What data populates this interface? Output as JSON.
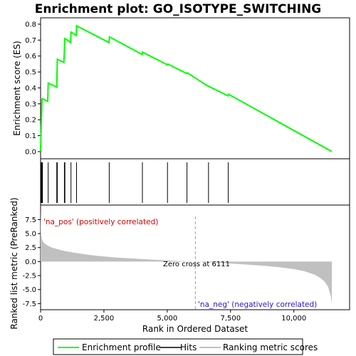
{
  "chart_data": {
    "type": "line",
    "title": "Enrichment plot: GO_ISOTYPE_SWITCHING",
    "x_axis": {
      "label": "Rank in Ordered Dataset",
      "range": [
        0,
        12200
      ],
      "ticks": [
        0,
        2500,
        5000,
        7500,
        10000
      ],
      "tick_labels": [
        "0",
        "2,500",
        "5,000",
        "7,500",
        "10,000"
      ]
    },
    "es_panel": {
      "ylabel": "Enrichment score (ES)",
      "ylim": [
        -0.045,
        0.84
      ],
      "ticks": [
        0.0,
        0.1,
        0.2,
        0.3,
        0.4,
        0.5,
        0.6,
        0.7,
        0.8
      ],
      "tick_labels": [
        "0.0",
        "0.1",
        "0.2",
        "0.3",
        "0.4",
        "0.5",
        "0.6",
        "0.7",
        "0.8"
      ],
      "grid": false
    },
    "metric_panel": {
      "ylabel": "Ranked list metric (PreRanked)",
      "ylim": [
        -8.6,
        10.1
      ],
      "ticks": [
        -7.5,
        -5.0,
        -2.5,
        0.0,
        2.5,
        5.0,
        7.5
      ],
      "tick_labels": [
        "-7.5",
        "-5.0",
        "-2.5",
        "0.0",
        "2.5",
        "5.0",
        "7.5"
      ]
    },
    "series": [
      {
        "name": "Enrichment profile",
        "color": "#00ff00",
        "x": [
          0,
          25,
          30,
          50,
          55,
          100,
          110,
          280,
          300,
          640,
          650,
          660,
          670,
          920,
          940,
          950,
          960,
          1190,
          1200,
          1410,
          1420,
          2700,
          2720,
          4010,
          4020,
          5000,
          5020,
          5770,
          5790,
          6620,
          6640,
          7400,
          7420,
          11500
        ],
        "y": [
          0.0,
          0.17,
          0.18,
          0.3,
          0.33,
          0.33,
          0.33,
          0.315,
          0.43,
          0.405,
          0.49,
          0.58,
          0.58,
          0.56,
          0.63,
          0.71,
          0.71,
          0.685,
          0.75,
          0.73,
          0.79,
          0.685,
          0.72,
          0.61,
          0.625,
          0.545,
          0.55,
          0.49,
          0.495,
          0.41,
          0.41,
          0.35,
          0.36,
          0.0
        ]
      }
    ],
    "hits": [
      15,
      30,
      50,
      60,
      75,
      300,
      640,
      660,
      940,
      960,
      1200,
      1420,
      2710,
      4020,
      5010,
      5780,
      6630,
      7410
    ],
    "ranking_metric": {
      "name": "Ranking metric scores",
      "color": "#c0c0c0",
      "x": [
        0,
        20,
        60,
        120,
        200,
        300,
        450,
        600,
        800,
        1000,
        1300,
        1600,
        2000,
        2500,
        3000,
        3500,
        4000,
        4500,
        5000,
        5500,
        6111,
        6600,
        7000,
        7500,
        8000,
        8500,
        9000,
        9500,
        10000,
        10400,
        10800,
        11000,
        11200,
        11350,
        11450,
        11500
      ],
      "y": [
        9.5,
        4.9,
        3.9,
        3.4,
        3.1,
        2.8,
        2.5,
        2.3,
        2.05,
        1.85,
        1.6,
        1.4,
        1.15,
        0.9,
        0.72,
        0.58,
        0.45,
        0.32,
        0.2,
        0.1,
        0.0,
        -0.12,
        -0.22,
        -0.35,
        -0.5,
        -0.65,
        -0.82,
        -1.05,
        -1.35,
        -1.7,
        -2.3,
        -2.8,
        -3.5,
        -4.5,
        -6.0,
        -7.6
      ]
    },
    "heatmap_bands": [
      {
        "start": 0,
        "end": 560,
        "color": "#e8000e"
      },
      {
        "start": 560,
        "end": 1200,
        "color": "#f21f2a"
      },
      {
        "start": 1200,
        "end": 2250,
        "color": "#f8434d"
      },
      {
        "start": 2250,
        "end": 3150,
        "color": "#fb6b73"
      },
      {
        "start": 3150,
        "end": 4400,
        "color": "#fd959a"
      },
      {
        "start": 4400,
        "end": 5000,
        "color": "#fdbcd8"
      },
      {
        "start": 5000,
        "end": 6111,
        "color": "#fdc8e8"
      },
      {
        "start": 6111,
        "end": 7800,
        "color": "#dcd8f8"
      },
      {
        "start": 7800,
        "end": 9000,
        "color": "#c4c0f8"
      },
      {
        "start": 9000,
        "end": 9700,
        "color": "#9f9bf0"
      },
      {
        "start": 9700,
        "end": 11000,
        "color": "#6b60e8"
      },
      {
        "start": 11000,
        "end": 11500,
        "color": "#2a16cc"
      }
    ],
    "annotations": {
      "pos_label": "'na_pos' (positively correlated)",
      "neg_label": "'na_neg' (negatively correlated)",
      "zero_cross": "Zero cross at 6111",
      "zero_cross_rank": 6111
    },
    "legend": {
      "placement": "bottom",
      "items": [
        {
          "label": "Enrichment profile",
          "color": "#00ff00"
        },
        {
          "label": "Hits",
          "color": "#000000"
        },
        {
          "label": "Ranking metric scores",
          "color": "#c0c0c0"
        }
      ]
    }
  }
}
